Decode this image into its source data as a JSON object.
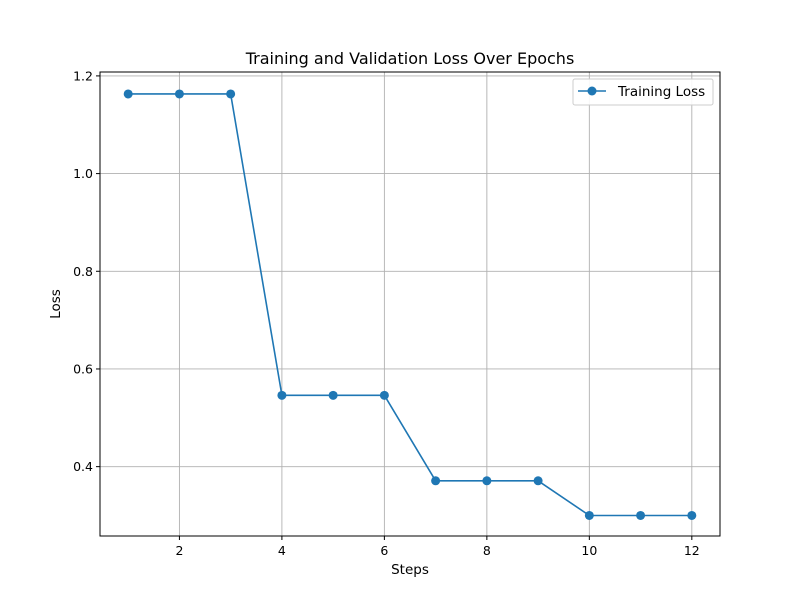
{
  "chart_data": {
    "type": "line",
    "title": "Training and Validation Loss Over Epochs",
    "xlabel": "Steps",
    "ylabel": "Loss",
    "xlim": [
      0.45,
      12.55
    ],
    "ylim": [
      0.258,
      1.208
    ],
    "xticks": [
      2,
      4,
      6,
      8,
      10,
      12
    ],
    "yticks": [
      0.4,
      0.6,
      0.8,
      1.0,
      1.2
    ],
    "xtick_labels": [
      "2",
      "4",
      "6",
      "8",
      "10",
      "12"
    ],
    "ytick_labels": [
      "0.4",
      "0.6",
      "0.8",
      "1.0",
      "1.2"
    ],
    "grid": true,
    "legend_position": "top-right",
    "x": [
      1,
      2,
      3,
      4,
      5,
      6,
      7,
      8,
      9,
      10,
      11,
      12
    ],
    "series": [
      {
        "name": "Training Loss",
        "color": "#1f77b4",
        "marker": "circle",
        "values": [
          1.163,
          1.163,
          1.163,
          0.546,
          0.546,
          0.546,
          0.371,
          0.371,
          0.371,
          0.3,
          0.3,
          0.3
        ]
      }
    ]
  }
}
